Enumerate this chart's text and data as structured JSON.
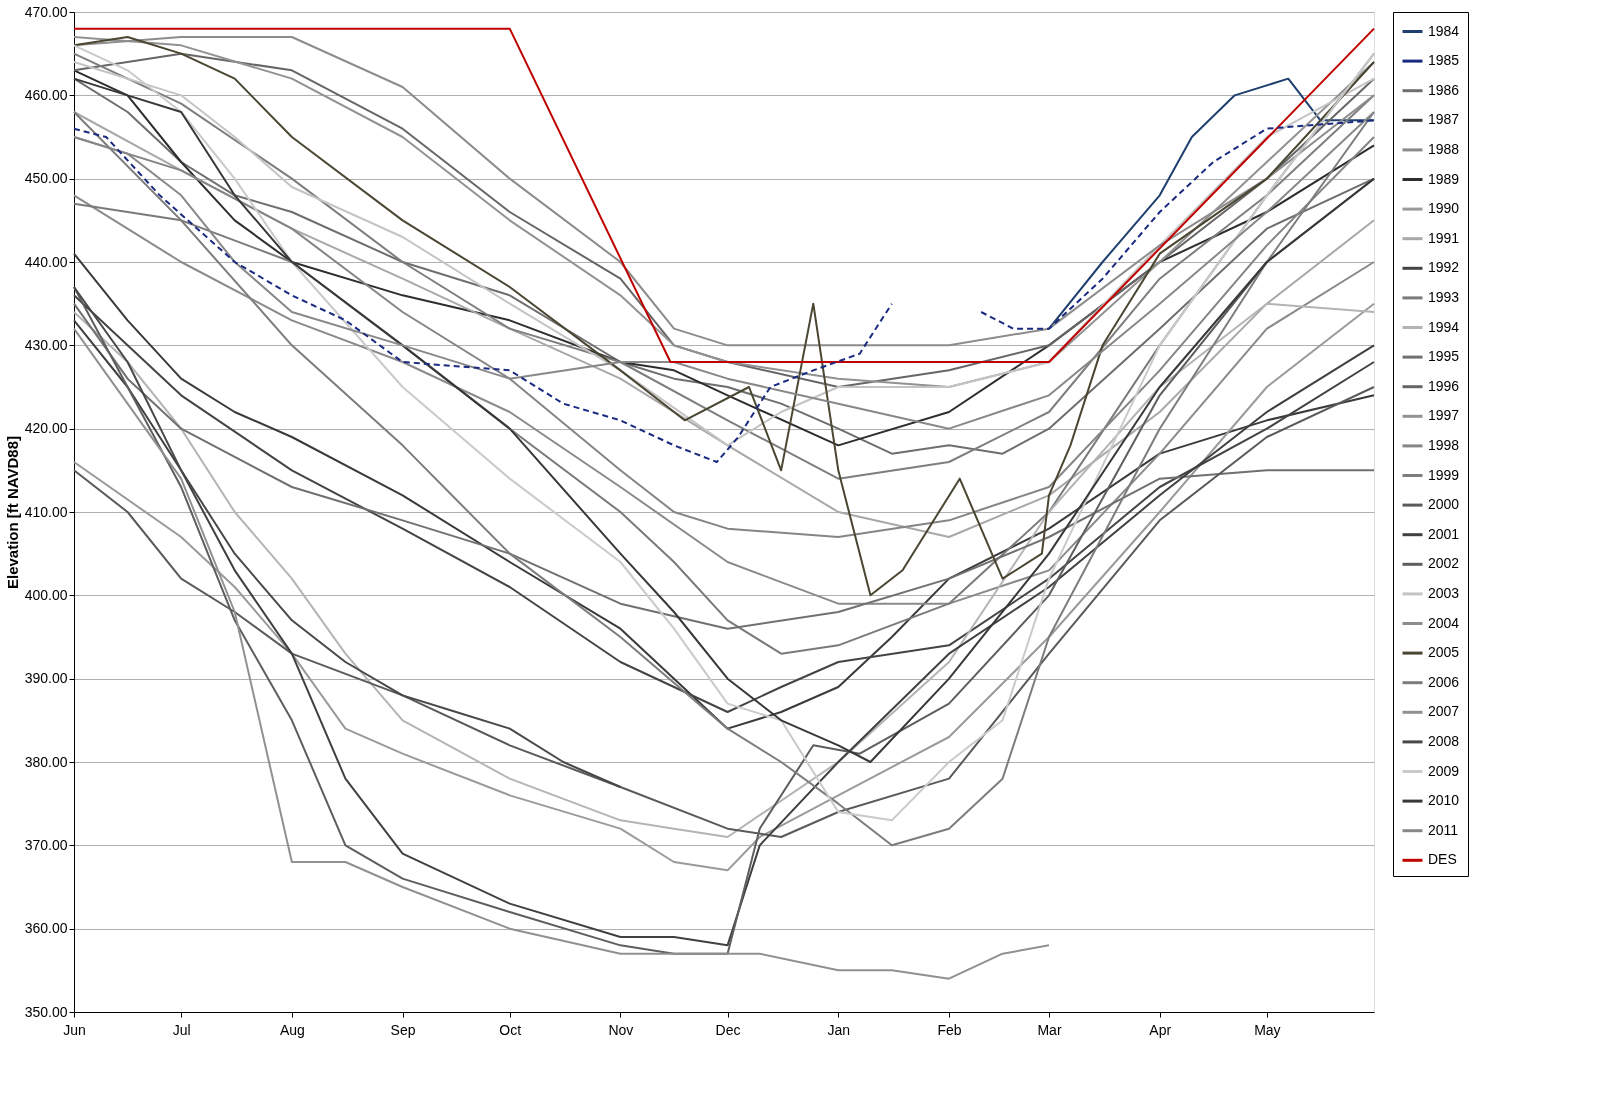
{
  "chart_data": {
    "type": "line",
    "ylabel": "Elevation [ft NAVD88]",
    "xlim": [
      "2000-06-01",
      "2001-05-31"
    ],
    "ylim": [
      350,
      470
    ],
    "xticks": [
      {
        "value": "2000-06-01",
        "label": "Jun"
      },
      {
        "value": "2000-07-01",
        "label": "Jul"
      },
      {
        "value": "2000-08-01",
        "label": "Aug"
      },
      {
        "value": "2000-09-01",
        "label": "Sep"
      },
      {
        "value": "2000-10-01",
        "label": "Oct"
      },
      {
        "value": "2000-11-01",
        "label": "Nov"
      },
      {
        "value": "2000-12-01",
        "label": "Dec"
      },
      {
        "value": "2001-01-01",
        "label": "Jan"
      },
      {
        "value": "2001-02-01",
        "label": "Feb"
      },
      {
        "value": "2001-03-01",
        "label": "Mar"
      },
      {
        "value": "2001-04-01",
        "label": "Apr"
      },
      {
        "value": "2001-05-01",
        "label": "May"
      }
    ],
    "yticks": [
      {
        "value": 350,
        "label": "350.00"
      },
      {
        "value": 360,
        "label": "360.00"
      },
      {
        "value": 370,
        "label": "370.00"
      },
      {
        "value": 380,
        "label": "380.00"
      },
      {
        "value": 390,
        "label": "390.00"
      },
      {
        "value": 400,
        "label": "400.00"
      },
      {
        "value": 410,
        "label": "410.00"
      },
      {
        "value": 420,
        "label": "420.00"
      },
      {
        "value": 430,
        "label": "430.00"
      },
      {
        "value": 440,
        "label": "440.00"
      },
      {
        "value": 450,
        "label": "450.00"
      },
      {
        "value": 460,
        "label": "460.00"
      },
      {
        "value": 470,
        "label": "470.00"
      }
    ],
    "grid": "y",
    "legend": "right",
    "marker": "none",
    "line_style": "solid",
    "series": [
      {
        "name": "1984",
        "color": "#1f3f6e",
        "x": [
          "2001-03-01",
          "2001-03-16",
          "2001-04-01",
          "2001-04-10",
          "2001-04-22",
          "2001-05-07",
          "2001-05-16",
          "2001-05-31"
        ],
        "values": [
          432,
          440,
          448,
          455,
          460,
          462,
          457,
          457
        ]
      },
      {
        "name": "1985",
        "color": "#1a2a80",
        "line_style": "dashed",
        "x": [
          "2000-06-01",
          "2000-06-10",
          "2000-06-25",
          "2000-07-16",
          "2000-08-01",
          "2000-08-16",
          "2000-09-01",
          "2000-09-16",
          "2000-10-01",
          "2000-10-16",
          "2000-11-01",
          "2000-11-16",
          "2000-11-28",
          "2000-12-04",
          "2000-12-13",
          "2000-12-25",
          "2001-01-07",
          "2001-01-16",
          "2001-01-28",
          "2001-02-10",
          "2001-02-19",
          "2001-03-01",
          "2001-03-16",
          "2001-04-01",
          "2001-04-16",
          "2001-05-01",
          "2001-05-31"
        ],
        "values": [
          456,
          455,
          448,
          440,
          436,
          433,
          428,
          427.5,
          427,
          423,
          421,
          418,
          416,
          419,
          425,
          427,
          429,
          435,
          null,
          434,
          432,
          432,
          438,
          446,
          452,
          456,
          457
        ]
      },
      {
        "name": "1986",
        "color": "#6e6e6e",
        "x": [
          "2000-06-01",
          "2000-06-16",
          "2000-07-01",
          "2000-07-16",
          "2000-08-01",
          "2000-09-01",
          "2000-10-01",
          "2000-11-01",
          "2000-11-16",
          "2000-12-01",
          "2000-12-16",
          "2001-01-01",
          "2001-01-16",
          "2001-02-01",
          "2001-02-16",
          "2001-03-01",
          "2001-04-01",
          "2001-05-01",
          "2001-05-31"
        ],
        "values": [
          462,
          458,
          452,
          448,
          446,
          440,
          436,
          428,
          426,
          425,
          423,
          420,
          417,
          418,
          417,
          420,
          432,
          444,
          450
        ]
      },
      {
        "name": "1987",
        "color": "#3a3a3a",
        "x": [
          "2000-06-01",
          "2000-06-16",
          "2000-07-01",
          "2000-07-16",
          "2000-08-01",
          "2000-09-01",
          "2000-10-01",
          "2000-11-01",
          "2000-11-16",
          "2000-12-01",
          "2000-12-16",
          "2001-01-01",
          "2001-01-16",
          "2001-02-01",
          "2001-03-01",
          "2001-04-01",
          "2001-05-01",
          "2001-05-31"
        ],
        "values": [
          441,
          433,
          426,
          422,
          419,
          412,
          404,
          396,
          390,
          384,
          386,
          389,
          395,
          402,
          408,
          417,
          421,
          424
        ]
      },
      {
        "name": "1988",
        "color": "#8a8a8a",
        "x": [
          "2000-06-01",
          "2000-07-01",
          "2000-08-01",
          "2000-09-01",
          "2000-10-01",
          "2000-11-01",
          "2000-12-01",
          "2001-01-01",
          "2001-02-01",
          "2001-03-01",
          "2001-04-01",
          "2001-05-01",
          "2001-05-31"
        ],
        "values": [
          448,
          440,
          433,
          428,
          422,
          413,
          404,
          399,
          399,
          403,
          417,
          432,
          440
        ]
      },
      {
        "name": "1989",
        "color": "#2e2e2e",
        "x": [
          "2000-06-01",
          "2000-06-16",
          "2000-07-01",
          "2000-07-16",
          "2000-08-01",
          "2000-09-01",
          "2000-10-01",
          "2000-11-01",
          "2000-11-16",
          "2000-12-01",
          "2001-01-01",
          "2001-02-01",
          "2001-03-01",
          "2001-04-01",
          "2001-05-01",
          "2001-05-31"
        ],
        "values": [
          463,
          460,
          452,
          445,
          440,
          436,
          433,
          428,
          427,
          424,
          418,
          422,
          430,
          440,
          446,
          454
        ]
      },
      {
        "name": "1990",
        "color": "#9a9a9a",
        "x": [
          "2000-06-01",
          "2000-07-01",
          "2000-07-16",
          "2000-08-01",
          "2000-08-16",
          "2000-09-01",
          "2000-10-01",
          "2000-11-01",
          "2000-11-16",
          "2000-12-01",
          "2000-12-10",
          "2001-01-01",
          "2001-02-01",
          "2001-03-01",
          "2001-04-01",
          "2001-05-01",
          "2001-05-31"
        ],
        "values": [
          416,
          407,
          401,
          393,
          384,
          381,
          376,
          372,
          368,
          367,
          371,
          376,
          383,
          395,
          410,
          425,
          435
        ]
      },
      {
        "name": "1991",
        "color": "#a8a8a8",
        "x": [
          "2000-06-01",
          "2000-07-01",
          "2000-08-01",
          "2000-09-01",
          "2000-10-01",
          "2000-11-01",
          "2000-12-01",
          "2001-01-01",
          "2001-02-01",
          "2001-03-01",
          "2001-04-01",
          "2001-05-01",
          "2001-05-31"
        ],
        "values": [
          458,
          451,
          444,
          438,
          432,
          426,
          418,
          410,
          407,
          412,
          422,
          435,
          445
        ]
      },
      {
        "name": "1992",
        "color": "#444444",
        "x": [
          "2000-06-01",
          "2000-06-16",
          "2000-07-01",
          "2000-08-01",
          "2000-09-01",
          "2000-10-01",
          "2000-11-01",
          "2000-12-01",
          "2000-12-16",
          "2001-01-01",
          "2001-02-01",
          "2001-03-01",
          "2001-04-01",
          "2001-05-01",
          "2001-05-31"
        ],
        "values": [
          436,
          430,
          424,
          415,
          408,
          401,
          392,
          386,
          389,
          392,
          394,
          402,
          413,
          420,
          428
        ]
      },
      {
        "name": "1993",
        "color": "#7a7a7a",
        "x": [
          "2000-06-01",
          "2000-07-01",
          "2000-08-01",
          "2000-09-01",
          "2000-10-01",
          "2000-11-01",
          "2000-11-16",
          "2000-12-01",
          "2000-12-16",
          "2001-01-01",
          "2001-02-01",
          "2001-03-01",
          "2001-04-01",
          "2001-05-01",
          "2001-05-31"
        ],
        "values": [
          447,
          445,
          440,
          430,
          420,
          410,
          404,
          397,
          393,
          394,
          399,
          410,
          430,
          448,
          465
        ]
      },
      {
        "name": "1994",
        "color": "#b4b4b4",
        "x": [
          "2000-06-01",
          "2000-06-16",
          "2000-07-01",
          "2000-07-16",
          "2000-08-01",
          "2000-08-16",
          "2000-09-01",
          "2000-10-01",
          "2000-11-01",
          "2000-11-16",
          "2000-12-01",
          "2001-01-01",
          "2001-02-01",
          "2001-03-01",
          "2001-04-01",
          "2001-05-01",
          "2001-05-31"
        ],
        "values": [
          434,
          428,
          420,
          410,
          402,
          393,
          385,
          378,
          373,
          372,
          371,
          380,
          392,
          410,
          425,
          435,
          434
        ]
      },
      {
        "name": "1995",
        "color": "#707070",
        "x": [
          "2000-06-01",
          "2000-06-16",
          "2000-07-01",
          "2000-08-01",
          "2000-09-01",
          "2000-10-01",
          "2000-11-01",
          "2000-12-01",
          "2001-01-01",
          "2001-02-01",
          "2001-03-01",
          "2001-04-01",
          "2001-05-01",
          "2001-05-31"
        ],
        "values": [
          435,
          426,
          420,
          413,
          409,
          405,
          399,
          396,
          398,
          402,
          407,
          414,
          415,
          415
        ]
      },
      {
        "name": "1996",
        "color": "#666666",
        "x": [
          "2000-06-01",
          "2000-07-01",
          "2000-08-01",
          "2000-09-01",
          "2000-10-01",
          "2000-11-01",
          "2000-11-16",
          "2000-12-01",
          "2001-01-01",
          "2001-02-01",
          "2001-03-01",
          "2001-04-01",
          "2001-05-01",
          "2001-05-31"
        ],
        "values": [
          463,
          465,
          463,
          456,
          446,
          438,
          430,
          428,
          425,
          427,
          430,
          440,
          450,
          462
        ]
      },
      {
        "name": "1997",
        "color": "#929292",
        "x": [
          "2000-06-01",
          "2000-07-01",
          "2000-08-01",
          "2000-09-01",
          "2000-10-01",
          "2000-11-01",
          "2000-11-16",
          "2000-12-01",
          "2001-01-01",
          "2001-02-01",
          "2001-03-01",
          "2001-04-01",
          "2001-05-01",
          "2001-05-31"
        ],
        "values": [
          467,
          466,
          462,
          455,
          445,
          436,
          430,
          428,
          426,
          425,
          428,
          440,
          452,
          464
        ]
      },
      {
        "name": "1998",
        "color": "#858585",
        "x": [
          "2000-06-01",
          "2000-07-01",
          "2000-08-01",
          "2000-09-01",
          "2000-10-01",
          "2000-11-01",
          "2000-11-16",
          "2000-12-01",
          "2001-01-01",
          "2001-02-01",
          "2001-03-01",
          "2001-04-01",
          "2001-05-01",
          "2001-05-31"
        ],
        "values": [
          455,
          451,
          444,
          434,
          426,
          415,
          410,
          408,
          407,
          409,
          413,
          427,
          442,
          455
        ]
      },
      {
        "name": "1999",
        "color": "#7e7e7e",
        "x": [
          "2000-06-01",
          "2000-07-01",
          "2000-08-01",
          "2000-09-01",
          "2000-10-01",
          "2000-11-01",
          "2000-12-01",
          "2001-01-01",
          "2001-02-01",
          "2001-03-01",
          "2001-04-01",
          "2001-05-01",
          "2001-05-31"
        ],
        "values": [
          465,
          459,
          450,
          440,
          432,
          428,
          421,
          414,
          416,
          422,
          438,
          448,
          460
        ]
      },
      {
        "name": "2000",
        "color": "#5a5a5a",
        "x": [
          "2000-06-01",
          "2000-06-16",
          "2000-07-01",
          "2000-07-16",
          "2000-08-01",
          "2000-09-01",
          "2000-10-01",
          "2000-11-01",
          "2000-12-01",
          "2000-12-16",
          "2001-01-01",
          "2001-02-01",
          "2001-03-01",
          "2001-04-01",
          "2001-05-01",
          "2001-05-31"
        ],
        "values": [
          415,
          410,
          402,
          398,
          393,
          388,
          382,
          377,
          372,
          371,
          374,
          378,
          393,
          409,
          419,
          425
        ]
      },
      {
        "name": "2001",
        "color": "#404040",
        "x": [
          "2000-06-01",
          "2000-06-16",
          "2000-07-01",
          "2000-07-16",
          "2000-08-01",
          "2000-08-16",
          "2000-09-01",
          "2000-10-01",
          "2000-11-01",
          "2000-11-16",
          "2000-12-01",
          "2000-12-10",
          "2001-01-01",
          "2001-02-01",
          "2001-03-01",
          "2001-04-01",
          "2001-05-01",
          "2001-05-31"
        ],
        "values": [
          433,
          425,
          415,
          403,
          393,
          378,
          369,
          363,
          359,
          359,
          358,
          370,
          380,
          393,
          401,
          412,
          422,
          430
        ]
      },
      {
        "name": "2002",
        "color": "#5e5e5e",
        "x": [
          "2000-06-01",
          "2000-06-16",
          "2000-07-01",
          "2000-07-16",
          "2000-08-01",
          "2000-08-16",
          "2000-09-01",
          "2000-10-01",
          "2000-11-01",
          "2000-11-16",
          "2000-12-01",
          "2000-12-10",
          "2000-12-25",
          "2001-01-07",
          "2001-02-01",
          "2001-03-01",
          "2001-04-01",
          "2001-05-01",
          "2001-05-31"
        ],
        "values": [
          437,
          425,
          413,
          397,
          385,
          370,
          366,
          362,
          358,
          357,
          357,
          372,
          382,
          381,
          387,
          400,
          424,
          440,
          450
        ]
      },
      {
        "name": "2003",
        "color": "#c4c4c4",
        "x": [
          "2000-06-01",
          "2000-07-01",
          "2000-07-16",
          "2000-08-01",
          "2000-09-01",
          "2000-10-01",
          "2000-11-01",
          "2000-12-01",
          "2000-12-16",
          "2001-01-01",
          "2001-02-01",
          "2001-03-01",
          "2001-04-01",
          "2001-05-01",
          "2001-05-31"
        ],
        "values": [
          464,
          460,
          455,
          449,
          443,
          435,
          427,
          418,
          422,
          425,
          425,
          428,
          442,
          455,
          462
        ]
      },
      {
        "name": "2004",
        "color": "#8c8c8c",
        "x": [
          "2000-06-01",
          "2000-07-01",
          "2000-08-01",
          "2000-09-01",
          "2000-10-01",
          "2000-11-01",
          "2000-11-16",
          "2000-12-01",
          "2001-01-01",
          "2001-02-01",
          "2001-03-01",
          "2001-04-01",
          "2001-05-01",
          "2001-05-31"
        ],
        "values": [
          466,
          467,
          467,
          461,
          450,
          440,
          432,
          430,
          430,
          430,
          432,
          442,
          450,
          460
        ]
      },
      {
        "name": "2005",
        "color": "#4a4632",
        "x": [
          "2000-06-01",
          "2000-06-16",
          "2000-07-01",
          "2000-07-16",
          "2000-08-01",
          "2000-09-01",
          "2000-10-01",
          "2000-11-01",
          "2000-11-19",
          "2000-12-07",
          "2000-12-16",
          "2000-12-25",
          "2001-01-01",
          "2001-01-10",
          "2001-01-19",
          "2001-02-04",
          "2001-02-16",
          "2001-02-27",
          "2001-03-01",
          "2001-03-07",
          "2001-03-16",
          "2001-04-01",
          "2001-05-01",
          "2001-05-31"
        ],
        "values": [
          466,
          467,
          465,
          462,
          455,
          445,
          437,
          427,
          421,
          425,
          415,
          435,
          415,
          400,
          403,
          414,
          402,
          405,
          412,
          418,
          430,
          441,
          450,
          464
        ]
      },
      {
        "name": "2006",
        "color": "#7c7c7c",
        "x": [
          "2000-06-01",
          "2000-07-01",
          "2000-08-01",
          "2000-09-01",
          "2000-10-01",
          "2000-11-01",
          "2000-12-01",
          "2000-12-16",
          "2001-01-01",
          "2001-01-16",
          "2001-02-01",
          "2001-02-16",
          "2001-03-01",
          "2001-04-01",
          "2001-05-01",
          "2001-05-31"
        ],
        "values": [
          458,
          445,
          430,
          418,
          405,
          395,
          384,
          380,
          375,
          370,
          372,
          378,
          395,
          420,
          440,
          458
        ]
      },
      {
        "name": "2007",
        "color": "#909090",
        "x": [
          "2000-06-01",
          "2000-06-16",
          "2000-07-01",
          "2000-07-16",
          "2000-08-01",
          "2000-08-16",
          "2000-09-01",
          "2000-10-01",
          "2000-11-01",
          "2000-11-25",
          "2000-12-10",
          "2001-01-01",
          "2001-01-16",
          "2001-02-01",
          "2001-02-16",
          "2001-03-01"
        ],
        "values": [
          432,
          423,
          414,
          398,
          368,
          368,
          365,
          360,
          357,
          357,
          357,
          355,
          355,
          354,
          357,
          358
        ]
      },
      {
        "name": "2008",
        "color": "#484848",
        "x": [
          "2000-06-01",
          "2000-06-16",
          "2000-07-01",
          "2000-07-16",
          "2000-08-01",
          "2000-08-16",
          "2000-09-01",
          "2000-09-16",
          "2000-10-01",
          "2000-10-16",
          "2000-11-01"
        ],
        "values": [
          437,
          428,
          415,
          405,
          397,
          392,
          388,
          386,
          384,
          380,
          377
        ]
      },
      {
        "name": "2009",
        "color": "#cacaca",
        "x": [
          "2000-06-01",
          "2000-06-16",
          "2000-07-01",
          "2000-07-16",
          "2000-08-01",
          "2000-09-01",
          "2000-10-01",
          "2000-11-01",
          "2000-11-16",
          "2000-12-01",
          "2000-12-16",
          "2001-01-01",
          "2001-01-16",
          "2001-02-01",
          "2001-02-16",
          "2001-03-01",
          "2001-04-01",
          "2001-05-01",
          "2001-05-31"
        ],
        "values": [
          466,
          463,
          458,
          450,
          440,
          425,
          414,
          404,
          396,
          387,
          385,
          374,
          373,
          380,
          385,
          402,
          430,
          448,
          465
        ]
      },
      {
        "name": "2010",
        "color": "#383838",
        "x": [
          "2000-06-01",
          "2000-06-16",
          "2000-07-01",
          "2000-07-16",
          "2000-08-01",
          "2000-09-01",
          "2000-10-01",
          "2000-11-01",
          "2000-11-16",
          "2000-12-01",
          "2000-12-16",
          "2001-01-01",
          "2001-01-10",
          "2001-02-01",
          "2001-03-01",
          "2001-04-01",
          "2001-05-01",
          "2001-05-31"
        ],
        "values": [
          462,
          460,
          458,
          448,
          440,
          430,
          420,
          405,
          398,
          390,
          385,
          382,
          380,
          390,
          405,
          425,
          440,
          450
        ]
      },
      {
        "name": "2011",
        "color": "#888888",
        "x": [
          "2000-06-01",
          "2000-06-16",
          "2000-07-01",
          "2000-07-16",
          "2000-08-01",
          "2000-09-01",
          "2000-10-01",
          "2000-11-01",
          "2000-11-16",
          "2000-12-01",
          "2001-01-01",
          "2001-02-01",
          "2001-03-01",
          "2001-04-01",
          "2001-05-01",
          "2001-05-31"
        ],
        "values": [
          455,
          453,
          448,
          440,
          434,
          430,
          426,
          428,
          428,
          426,
          423,
          420,
          424,
          435,
          446,
          458
        ]
      },
      {
        "name": "DES",
        "color": "#c00000",
        "x": [
          "2000-06-01",
          "2000-10-01",
          "2000-11-15",
          "2001-03-01",
          "2001-05-31"
        ],
        "values": [
          468,
          468,
          428,
          428,
          468
        ]
      }
    ]
  }
}
